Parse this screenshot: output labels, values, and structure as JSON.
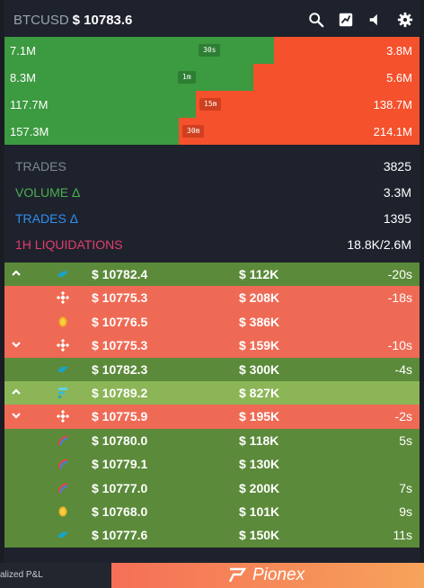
{
  "header": {
    "symbol": "BTCUSD",
    "price": "$ 10783.6"
  },
  "icons": {
    "search": "search-icon",
    "chart": "chart-icon",
    "sound": "speaker-icon",
    "settings": "gear-icon"
  },
  "volume_rows": [
    {
      "left": "7.1M",
      "tf": "30s",
      "right": "3.8M",
      "buy_share": 0.65
    },
    {
      "left": "8.3M",
      "tf": "1m",
      "right": "5.6M",
      "buy_share": 0.6
    },
    {
      "left": "117.7M",
      "tf": "15m",
      "right": "138.7M",
      "buy_share": 0.46
    },
    {
      "left": "157.3M",
      "tf": "30m",
      "right": "214.1M",
      "buy_share": 0.42
    }
  ],
  "stats": [
    {
      "label": "TRADES",
      "value": "3825",
      "color": "#7f8791"
    },
    {
      "label": "VOLUME Δ",
      "value": "3.3M",
      "color": "#4caf50"
    },
    {
      "label": "TRADES Δ",
      "value": "1395",
      "color": "#2f8ef0"
    },
    {
      "label": "1H LIQUIDATIONS",
      "value": "18.8K/2.6M",
      "color": "#e43d6b"
    }
  ],
  "trades": [
    {
      "side": "buy",
      "arrow": "up",
      "exch": "bird",
      "price": "$ 10782.4",
      "amount": "$ 112K",
      "age": "-20s"
    },
    {
      "side": "sell",
      "arrow": "",
      "exch": "binance",
      "price": "$ 10775.3",
      "amount": "$ 208K",
      "age": "-18s"
    },
    {
      "side": "sell",
      "arrow": "",
      "exch": "coin",
      "price": "$ 10776.5",
      "amount": "$ 386K",
      "age": ""
    },
    {
      "side": "sell",
      "arrow": "down",
      "exch": "binance",
      "price": "$ 10775.3",
      "amount": "$ 159K",
      "age": "-10s"
    },
    {
      "side": "buy",
      "arrow": "",
      "exch": "bird",
      "price": "$ 10782.3",
      "amount": "$ 300K",
      "age": "-4s"
    },
    {
      "side": "big",
      "arrow": "up",
      "exch": "ftx",
      "price": "$ 10789.2",
      "amount": "$ 827K",
      "age": ""
    },
    {
      "side": "sell",
      "arrow": "down",
      "exch": "binance",
      "price": "$ 10775.9",
      "amount": "$ 195K",
      "age": "-2s"
    },
    {
      "side": "buy",
      "arrow": "",
      "exch": "rainbow",
      "price": "$ 10780.0",
      "amount": "$ 118K",
      "age": "5s"
    },
    {
      "side": "buy",
      "arrow": "",
      "exch": "rainbow",
      "price": "$ 10779.1",
      "amount": "$ 130K",
      "age": ""
    },
    {
      "side": "buy",
      "arrow": "",
      "exch": "rainbow",
      "price": "$ 10777.0",
      "amount": "$ 200K",
      "age": "7s"
    },
    {
      "side": "buy",
      "arrow": "",
      "exch": "coin",
      "price": "$ 10768.0",
      "amount": "$ 101K",
      "age": "9s"
    },
    {
      "side": "buy",
      "arrow": "",
      "exch": "bird",
      "price": "$ 10777.6",
      "amount": "$ 150K",
      "age": "11s"
    }
  ],
  "footer": {
    "left_text": "alized P&L",
    "brand": "Pionex"
  }
}
